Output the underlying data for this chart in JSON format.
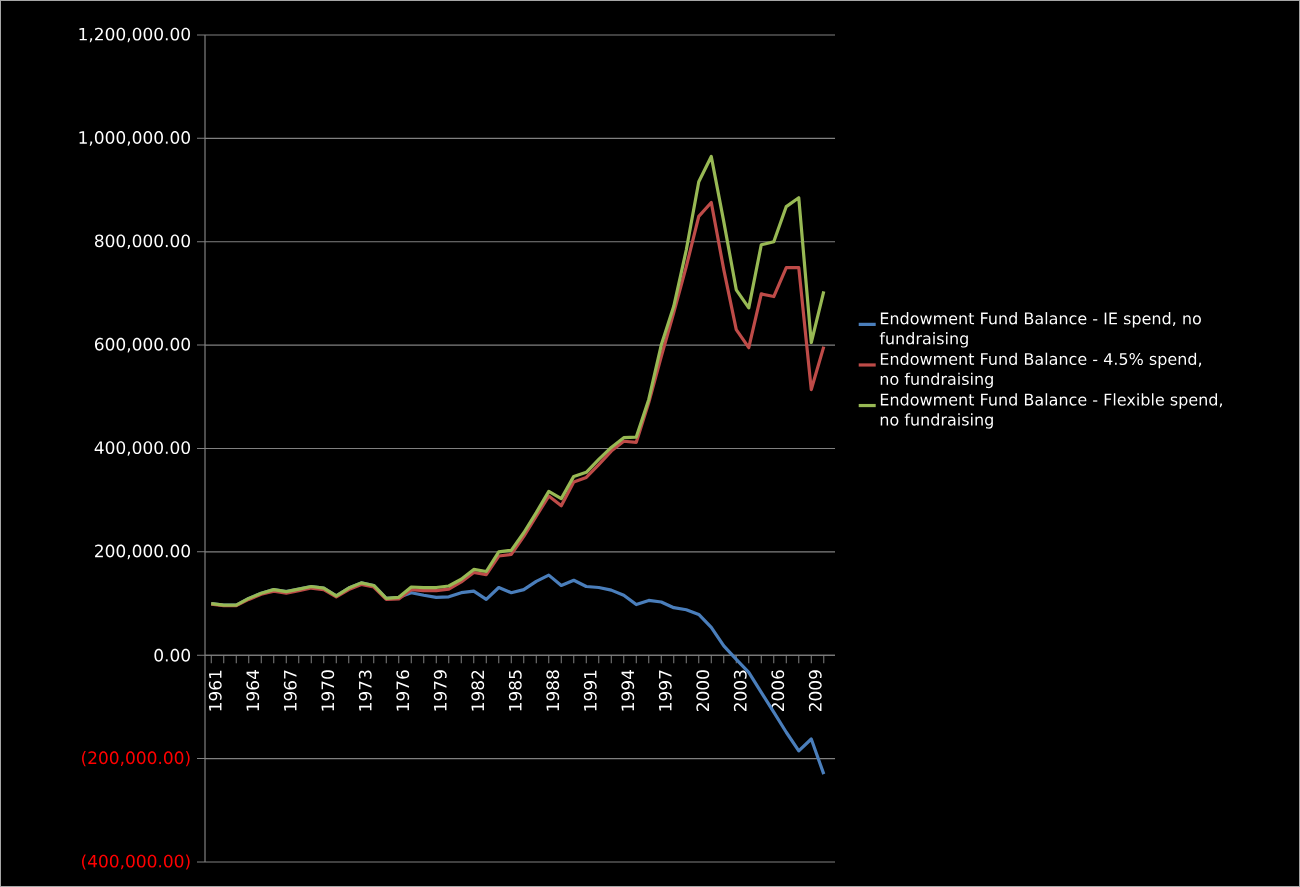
{
  "chart_data": {
    "type": "line",
    "categories": [
      "1961",
      null,
      null,
      "1964",
      null,
      null,
      "1967",
      null,
      null,
      "1970",
      null,
      null,
      "1973",
      null,
      null,
      "1976",
      null,
      null,
      "1979",
      null,
      null,
      "1982",
      null,
      null,
      "1985",
      null,
      null,
      "1988",
      null,
      null,
      "1991",
      null,
      null,
      "1994",
      null,
      null,
      "1997",
      null,
      null,
      "2000",
      null,
      null,
      "2003",
      null,
      null,
      "2006",
      null,
      null,
      "2009",
      null
    ],
    "series": [
      {
        "name": "Endowment Fund Balance - IE spend, no fundraising",
        "color": "#4a7ebb",
        "values": [
          100000,
          97000,
          97000,
          110000,
          120000,
          127000,
          123000,
          128000,
          133000,
          130000,
          115000,
          130000,
          140000,
          135000,
          110000,
          112000,
          121000,
          116000,
          112000,
          113000,
          121000,
          124000,
          108000,
          131000,
          121000,
          127000,
          143000,
          155000,
          135000,
          145000,
          133000,
          131000,
          126000,
          116000,
          98000,
          106000,
          103000,
          92000,
          88000,
          79000,
          54000,
          18000,
          -8000,
          -33000,
          -72000,
          -110000,
          -149000,
          -185000,
          -162000,
          -230000
        ]
      },
      {
        "name": "Endowment Fund Balance - 4.5% spend, no fundraising",
        "color": "#be4b48",
        "values": [
          99000,
          96000,
          96000,
          108000,
          118000,
          124000,
          120000,
          125000,
          130000,
          127000,
          113000,
          127000,
          137000,
          132000,
          108000,
          109000,
          127000,
          125000,
          125000,
          128000,
          142000,
          160000,
          156000,
          192000,
          195000,
          230000,
          269000,
          308000,
          289000,
          335000,
          344000,
          369000,
          395000,
          414000,
          412000,
          489000,
          578000,
          663000,
          752000,
          849000,
          876000,
          746000,
          630000,
          595000,
          699000,
          694000,
          750000,
          750000,
          514000,
          597000
        ]
      },
      {
        "name": "Endowment Fund Balance - Flexible spend, no fundraising",
        "color": "#98b954",
        "values": [
          100000,
          97000,
          97000,
          110000,
          120000,
          127000,
          123000,
          128000,
          133000,
          130000,
          115000,
          130000,
          140000,
          135000,
          110000,
          112000,
          132000,
          131000,
          131000,
          134000,
          147000,
          166000,
          162000,
          200000,
          203000,
          237000,
          276000,
          317000,
          303000,
          346000,
          354000,
          379000,
          402000,
          421000,
          422000,
          495000,
          600000,
          675000,
          784000,
          916000,
          965000,
          839000,
          707000,
          672000,
          794000,
          800000,
          868000,
          885000,
          605000,
          704000
        ]
      }
    ],
    "ylim": [
      -400000,
      1200000
    ],
    "yticks": [
      {
        "value": -400000,
        "label": "(400,000.00)"
      },
      {
        "value": -200000,
        "label": "(200,000.00)"
      },
      {
        "value": 0,
        "label": "0.00"
      },
      {
        "value": 200000,
        "label": "200,000.00"
      },
      {
        "value": 400000,
        "label": "400,000.00"
      },
      {
        "value": 600000,
        "label": "600,000.00"
      },
      {
        "value": 800000,
        "label": "800,000.00"
      },
      {
        "value": 1000000,
        "label": "1,000,000.00"
      },
      {
        "value": 1200000,
        "label": "1,200,000.00"
      }
    ],
    "grid": "y",
    "legend": "right",
    "line_style": "solid",
    "marker": "none"
  }
}
